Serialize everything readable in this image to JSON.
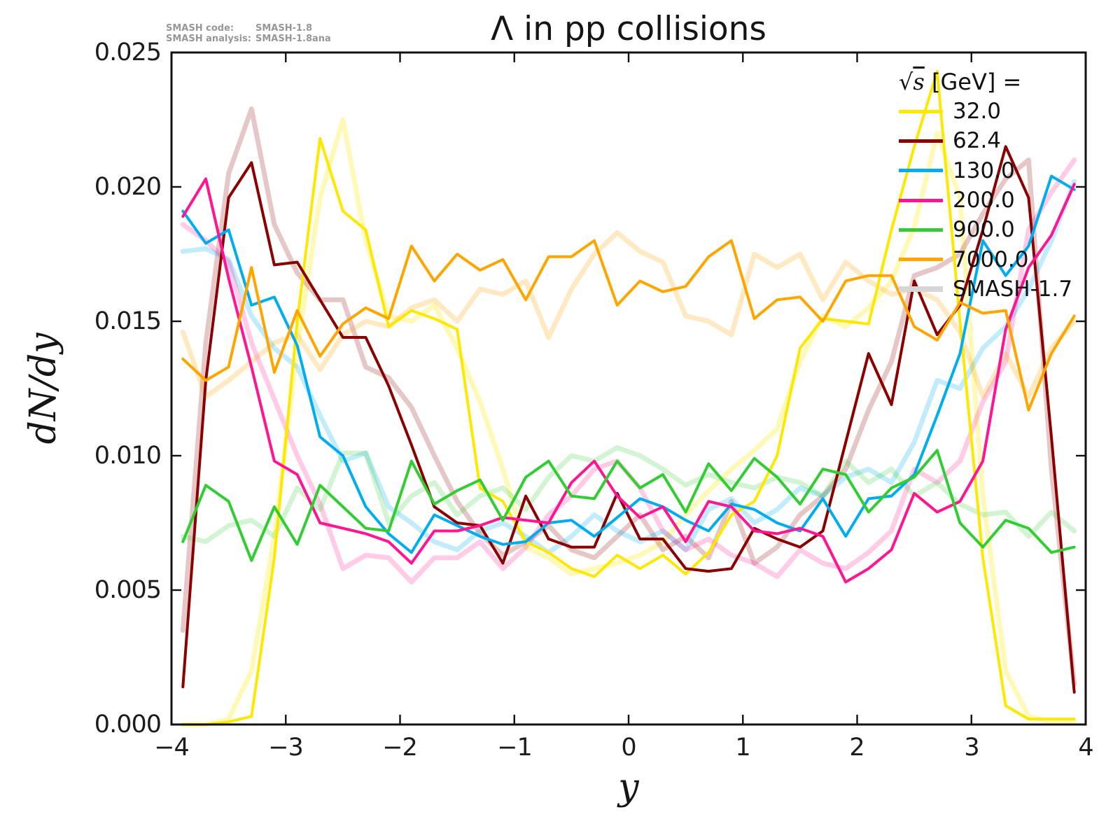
{
  "title": "Λ in pp collisions",
  "annotation": {
    "code_label": "SMASH code:",
    "code_value": "SMASH-1.8",
    "analysis_label": "SMASH analysis:",
    "analysis_value": "SMASH-1.8ana"
  },
  "chart_data": {
    "type": "line",
    "title": "Λ in pp collisions",
    "xlabel": "y",
    "ylabel": "dN/dy",
    "xlim": [
      -4,
      4
    ],
    "ylim": [
      0,
      0.025
    ],
    "grid": false,
    "xticks": [
      -4,
      -3,
      -2,
      -1,
      0,
      1,
      2,
      3,
      4
    ],
    "yticks": [
      0.0,
      0.005,
      0.01,
      0.015,
      0.02,
      0.025
    ],
    "xtick_labels": [
      "−4",
      "−3",
      "−2",
      "−1",
      "0",
      "1",
      "2",
      "3",
      "4"
    ],
    "ytick_labels": [
      "0.000",
      "0.005",
      "0.010",
      "0.015",
      "0.020",
      "0.025"
    ],
    "legend": {
      "position": "upper right",
      "header_radical": "√",
      "header_radicand": "s",
      "header_rest": " [GeV] =",
      "entries": [
        {
          "label": "32.0",
          "color": "#ffe800",
          "thickness": 5
        },
        {
          "label": "62.4",
          "color": "#8b0000",
          "thickness": 5
        },
        {
          "label": "130.0",
          "color": "#00aeef",
          "thickness": 5
        },
        {
          "label": "200.0",
          "color": "#ff1493",
          "thickness": 5
        },
        {
          "label": "900.0",
          "color": "#32cd32",
          "thickness": 5
        },
        {
          "label": "7000.0",
          "color": "#ffa500",
          "thickness": 5
        },
        {
          "label": "SMASH-1.7",
          "color": "#d6d6d6",
          "thickness": 8
        }
      ]
    },
    "x": [
      -3.9,
      -3.7,
      -3.5,
      -3.3,
      -3.1,
      -2.9,
      -2.7,
      -2.5,
      -2.3,
      -2.1,
      -1.9,
      -1.7,
      -1.5,
      -1.3,
      -1.1,
      -0.9,
      -0.7,
      -0.5,
      -0.3,
      -0.1,
      0.1,
      0.3,
      0.5,
      0.7,
      0.9,
      1.1,
      1.3,
      1.5,
      1.7,
      1.9,
      2.1,
      2.3,
      2.5,
      2.7,
      2.9,
      3.1,
      3.3,
      3.5,
      3.7,
      3.9
    ],
    "series": [
      {
        "name": "SMASH-1.7 32.0",
        "color": "#ffe800",
        "opacity": 0.28,
        "width": 7,
        "values": [
          0.0,
          0.0,
          0.0002,
          0.002,
          0.007,
          0.014,
          0.0196,
          0.0225,
          0.018,
          0.0152,
          0.015,
          0.0156,
          0.014,
          0.012,
          0.0095,
          0.0066,
          0.0062,
          0.0056,
          0.0058,
          0.006,
          0.0063,
          0.0068,
          0.0078,
          0.0087,
          0.0095,
          0.0102,
          0.011,
          0.0135,
          0.0152,
          0.0148,
          0.0155,
          0.0165,
          0.0185,
          0.022,
          0.0196,
          0.0085,
          0.002,
          0.0003,
          0.0001,
          0.0001
        ]
      },
      {
        "name": "SMASH-1.7 62.4",
        "color": "#8b0000",
        "opacity": 0.22,
        "width": 7,
        "values": [
          0.0035,
          0.0142,
          0.0205,
          0.0229,
          0.0186,
          0.0168,
          0.0158,
          0.0158,
          0.0133,
          0.0129,
          0.0118,
          0.01,
          0.0083,
          0.0071,
          0.0063,
          0.0068,
          0.0074,
          0.0065,
          0.0062,
          0.007,
          0.0078,
          0.0065,
          0.007,
          0.0062,
          0.0083,
          0.006,
          0.0066,
          0.0078,
          0.0085,
          0.0095,
          0.0117,
          0.0135,
          0.0167,
          0.017,
          0.0175,
          0.019,
          0.0203,
          0.021,
          0.0095,
          0.0015
        ]
      },
      {
        "name": "SMASH-1.7 130.0",
        "color": "#00aeef",
        "opacity": 0.24,
        "width": 7,
        "values": [
          0.0176,
          0.0177,
          0.0173,
          0.0152,
          0.014,
          0.0133,
          0.0115,
          0.0098,
          0.0101,
          0.0081,
          0.0075,
          0.0068,
          0.0065,
          0.0072,
          0.0075,
          0.007,
          0.0064,
          0.007,
          0.0078,
          0.0072,
          0.0068,
          0.0072,
          0.0065,
          0.008,
          0.0084,
          0.0075,
          0.008,
          0.0088,
          0.0085,
          0.0092,
          0.0095,
          0.009,
          0.0105,
          0.0128,
          0.0125,
          0.014,
          0.0148,
          0.0162,
          0.018,
          0.0202
        ]
      },
      {
        "name": "SMASH-1.7 200.0",
        "color": "#ff1493",
        "opacity": 0.22,
        "width": 7,
        "values": [
          0.0186,
          0.018,
          0.0172,
          0.0142,
          0.0121,
          0.01,
          0.0082,
          0.0058,
          0.0063,
          0.0062,
          0.0053,
          0.0062,
          0.0062,
          0.0068,
          0.0058,
          0.0066,
          0.0078,
          0.0085,
          0.0095,
          0.0098,
          0.0088,
          0.0072,
          0.0065,
          0.0069,
          0.0063,
          0.006,
          0.0055,
          0.0065,
          0.006,
          0.0058,
          0.0064,
          0.0072,
          0.0095,
          0.009,
          0.0098,
          0.012,
          0.0135,
          0.0184,
          0.0198,
          0.021
        ]
      },
      {
        "name": "SMASH-1.7 900.0",
        "color": "#32cd32",
        "opacity": 0.22,
        "width": 7,
        "values": [
          0.007,
          0.0068,
          0.0074,
          0.0076,
          0.007,
          0.0088,
          0.008,
          0.0101,
          0.0101,
          0.0075,
          0.0085,
          0.009,
          0.0078,
          0.0085,
          0.0088,
          0.008,
          0.0092,
          0.01,
          0.0098,
          0.0103,
          0.01,
          0.0095,
          0.0089,
          0.0093,
          0.009,
          0.0088,
          0.0092,
          0.009,
          0.0085,
          0.0098,
          0.009,
          0.0095,
          0.0085,
          0.009,
          0.0082,
          0.0078,
          0.0079,
          0.007,
          0.0079,
          0.0072
        ]
      },
      {
        "name": "SMASH-1.7 7000.0",
        "color": "#ffa500",
        "opacity": 0.24,
        "width": 7,
        "values": [
          0.0146,
          0.0122,
          0.0128,
          0.0135,
          0.0142,
          0.0145,
          0.0132,
          0.0145,
          0.015,
          0.0148,
          0.0155,
          0.0158,
          0.015,
          0.0162,
          0.016,
          0.0165,
          0.0144,
          0.0162,
          0.0175,
          0.0183,
          0.0176,
          0.0172,
          0.0152,
          0.015,
          0.0145,
          0.0175,
          0.017,
          0.0175,
          0.0158,
          0.0172,
          0.0165,
          0.016,
          0.0162,
          0.0158,
          0.0146,
          0.0122,
          0.0138,
          0.0122,
          0.014,
          0.015
        ]
      },
      {
        "name": "32.0",
        "color": "#ffe800",
        "opacity": 1,
        "width": 4,
        "values": [
          0.0,
          0.0,
          0.0001,
          0.0003,
          0.0062,
          0.015,
          0.0218,
          0.0191,
          0.0184,
          0.0148,
          0.0154,
          0.0151,
          0.0147,
          0.0088,
          0.0083,
          0.0068,
          0.0064,
          0.0058,
          0.0055,
          0.0063,
          0.0058,
          0.0063,
          0.0056,
          0.0064,
          0.0078,
          0.0083,
          0.01,
          0.014,
          0.0151,
          0.015,
          0.0149,
          0.0184,
          0.0215,
          0.0243,
          0.015,
          0.0062,
          0.0007,
          0.0002,
          0.0002,
          0.0002
        ]
      },
      {
        "name": "62.4",
        "color": "#8b0000",
        "opacity": 1,
        "width": 4,
        "values": [
          0.0014,
          0.0128,
          0.0196,
          0.0209,
          0.0171,
          0.0172,
          0.0158,
          0.0144,
          0.0144,
          0.0126,
          0.0104,
          0.0081,
          0.0075,
          0.0074,
          0.006,
          0.0085,
          0.0069,
          0.0066,
          0.0066,
          0.0086,
          0.0069,
          0.0069,
          0.0058,
          0.0057,
          0.0058,
          0.0073,
          0.0069,
          0.0066,
          0.0072,
          0.0105,
          0.0138,
          0.0119,
          0.0165,
          0.0145,
          0.0156,
          0.0184,
          0.0215,
          0.0196,
          0.0107,
          0.0012
        ]
      },
      {
        "name": "130.0",
        "color": "#00aeef",
        "opacity": 1,
        "width": 4,
        "values": [
          0.0191,
          0.0179,
          0.0184,
          0.0156,
          0.0159,
          0.0141,
          0.0107,
          0.01,
          0.0081,
          0.0071,
          0.0064,
          0.0078,
          0.0074,
          0.007,
          0.0067,
          0.0068,
          0.0075,
          0.0076,
          0.007,
          0.0077,
          0.0084,
          0.0081,
          0.0076,
          0.0072,
          0.0082,
          0.008,
          0.0075,
          0.0072,
          0.0084,
          0.007,
          0.0084,
          0.0085,
          0.0093,
          0.0115,
          0.0138,
          0.018,
          0.0167,
          0.0178,
          0.0204,
          0.0199
        ]
      },
      {
        "name": "200.0",
        "color": "#ff1493",
        "opacity": 1,
        "width": 4,
        "values": [
          0.0189,
          0.0203,
          0.0166,
          0.0133,
          0.0098,
          0.0093,
          0.0075,
          0.0073,
          0.0071,
          0.0068,
          0.006,
          0.0072,
          0.0072,
          0.0074,
          0.0077,
          0.0076,
          0.0075,
          0.009,
          0.0098,
          0.0085,
          0.0077,
          0.0081,
          0.0068,
          0.0083,
          0.0081,
          0.0072,
          0.0071,
          0.0073,
          0.007,
          0.0053,
          0.0058,
          0.0065,
          0.0086,
          0.0079,
          0.0083,
          0.0098,
          0.0147,
          0.017,
          0.0182,
          0.0201
        ]
      },
      {
        "name": "900.0",
        "color": "#32cd32",
        "opacity": 1,
        "width": 4,
        "values": [
          0.0068,
          0.0089,
          0.0083,
          0.0061,
          0.0081,
          0.0067,
          0.0089,
          0.0081,
          0.0073,
          0.0072,
          0.0098,
          0.0082,
          0.0087,
          0.0091,
          0.0076,
          0.0092,
          0.0098,
          0.0085,
          0.0084,
          0.0098,
          0.0088,
          0.0093,
          0.0079,
          0.0097,
          0.0087,
          0.0099,
          0.0092,
          0.0082,
          0.0095,
          0.0093,
          0.0079,
          0.0088,
          0.0092,
          0.0102,
          0.0075,
          0.0066,
          0.0076,
          0.0073,
          0.0064,
          0.0066
        ]
      },
      {
        "name": "7000.0",
        "color": "#ffa500",
        "opacity": 1,
        "width": 4,
        "values": [
          0.0136,
          0.0128,
          0.0133,
          0.017,
          0.0131,
          0.0154,
          0.0137,
          0.0149,
          0.0155,
          0.0151,
          0.0178,
          0.0165,
          0.0175,
          0.0169,
          0.0173,
          0.0158,
          0.0174,
          0.0174,
          0.018,
          0.0156,
          0.0165,
          0.0161,
          0.0163,
          0.0174,
          0.018,
          0.0151,
          0.0158,
          0.0159,
          0.015,
          0.0165,
          0.0167,
          0.0167,
          0.0148,
          0.0143,
          0.0157,
          0.0153,
          0.0154,
          0.0117,
          0.0138,
          0.0152
        ]
      }
    ]
  }
}
